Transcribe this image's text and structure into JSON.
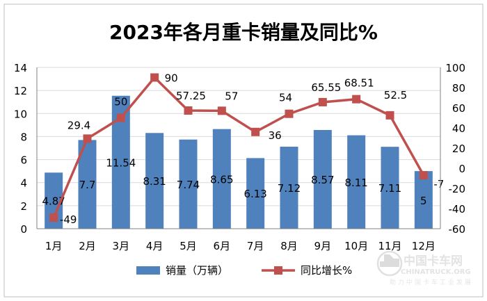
{
  "chart_data": {
    "type": "bar",
    "title": "2023年各月重卡销量及同比%",
    "categories": [
      "1月",
      "2月",
      "3月",
      "4月",
      "5月",
      "6月",
      "7月",
      "8月",
      "9月",
      "10月",
      "11月",
      "12月"
    ],
    "series": [
      {
        "name": "销量（万辆）",
        "type": "bar",
        "axis": "left",
        "color": "#4f81bd",
        "values": [
          4.87,
          7.7,
          11.54,
          8.31,
          7.74,
          8.65,
          6.13,
          7.12,
          8.57,
          8.11,
          7.11,
          5
        ],
        "labels": [
          "4.87",
          "7.7",
          "11.54",
          "8.31",
          "7.74",
          "8.65",
          "6.13",
          "7.12",
          "8.57",
          "8.11",
          "7.11",
          "5"
        ]
      },
      {
        "name": "同比增长%",
        "type": "line",
        "axis": "right",
        "color": "#c0504d",
        "values": [
          -49,
          29.4,
          50,
          90,
          57.25,
          57,
          36,
          54,
          65.55,
          68.51,
          52.5,
          -7
        ],
        "labels": [
          "-49",
          "29.4",
          "50",
          "90",
          "57.25",
          "57",
          "36",
          "54",
          "65.55",
          "68.51",
          "52.5",
          "-7"
        ]
      }
    ],
    "y_left": {
      "min": 0,
      "max": 14,
      "ticks": [
        "0",
        "2",
        "4",
        "6",
        "8",
        "10",
        "12",
        "14"
      ]
    },
    "y_right": {
      "min": -60,
      "max": 100,
      "ticks": [
        "-60",
        "-40",
        "-20",
        "0",
        "20",
        "40",
        "60",
        "80",
        "100"
      ]
    },
    "grid": true,
    "legend_position": "bottom"
  },
  "watermark": {
    "brand": "中国卡车网",
    "url": "CHINATRUCK.ORG",
    "slogan": "助力中国卡车工业发展"
  }
}
